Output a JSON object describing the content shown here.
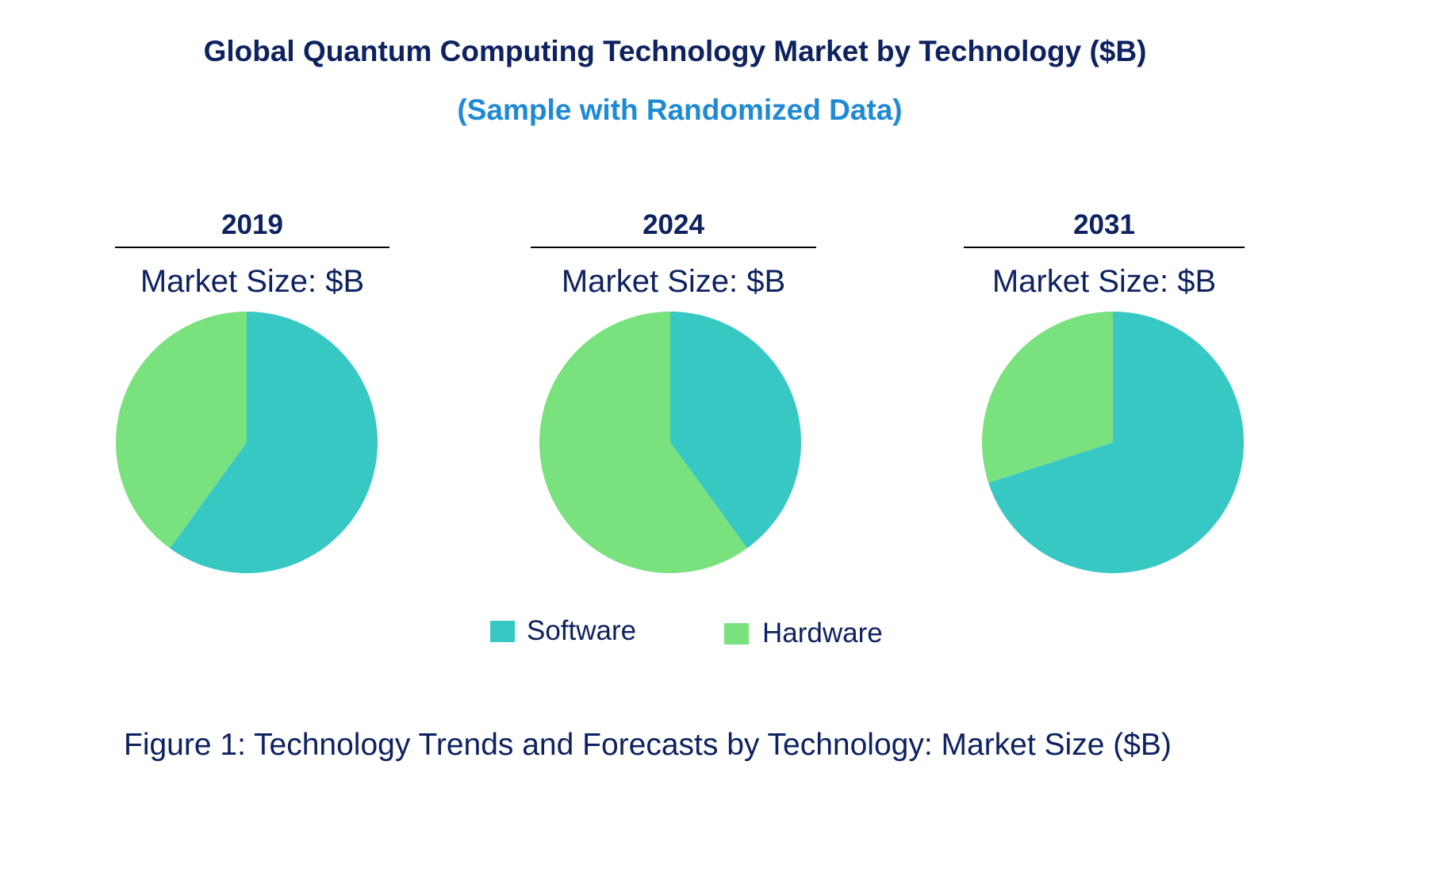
{
  "title": "Global Quantum Computing Technology Market by Technology ($B)",
  "subtitle": "(Sample with Randomized Data)",
  "caption": "Figure 1: Technology Trends and Forecasts by Technology: Market Size ($B)",
  "colors": {
    "Software": "#38c8c4",
    "Hardware": "#7ae17f",
    "text": "#0d2260",
    "subtitle": "#1e8ad6"
  },
  "chart_data": {
    "type": "pie",
    "legend_position": "bottom",
    "categories": [
      "Software",
      "Hardware"
    ],
    "pies": [
      {
        "year": "2019",
        "label": "Market Size: $B",
        "values": [
          60,
          40
        ]
      },
      {
        "year": "2024",
        "label": "Market Size: $B",
        "values": [
          40,
          60
        ]
      },
      {
        "year": "2031",
        "label": "Market Size: $B",
        "values": [
          70,
          30
        ]
      }
    ]
  },
  "legend": [
    {
      "label": "Software"
    },
    {
      "label": "Hardware"
    }
  ]
}
